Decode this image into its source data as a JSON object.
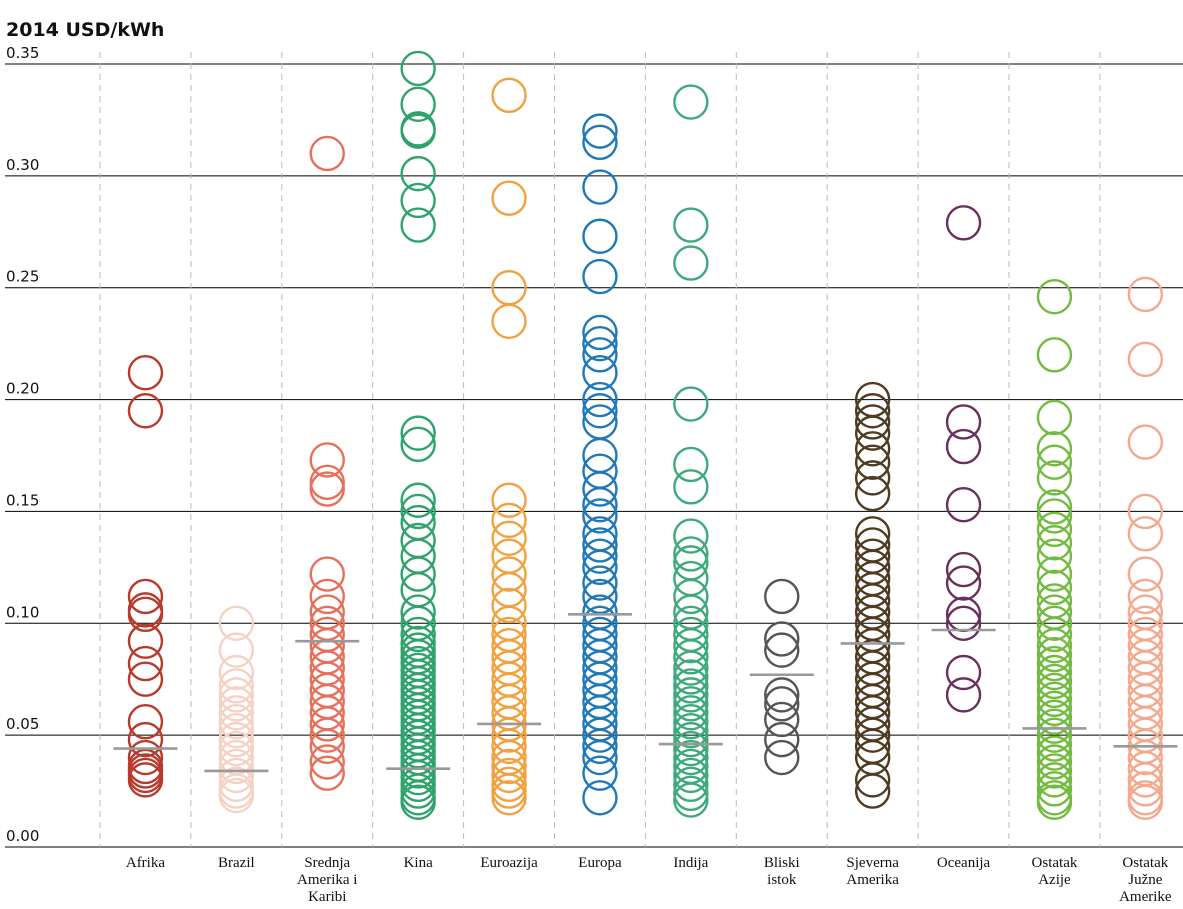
{
  "chart_data": {
    "type": "scatter",
    "title": "",
    "ylabel": "2014 USD/kWh",
    "xlabel": "",
    "ylim": [
      0,
      0.35
    ],
    "yticks": [
      "0.00",
      "0.05",
      "0.10",
      "0.15",
      "0.20",
      "0.25",
      "0.30",
      "0.35"
    ],
    "grid": "horizontal",
    "categories": [
      {
        "label_lines": [
          "Afrika"
        ],
        "color": "#b83a2c",
        "values": [
          0.212,
          0.195,
          0.112,
          0.106,
          0.104,
          0.092,
          0.082,
          0.075,
          0.056,
          0.048,
          0.04,
          0.036,
          0.034,
          0.032,
          0.03
        ],
        "mean": 0.044
      },
      {
        "label_lines": [
          "Brazil"
        ],
        "color": "#f5d2c4",
        "values": [
          0.1,
          0.088,
          0.078,
          0.072,
          0.068,
          0.064,
          0.06,
          0.056,
          0.052,
          0.048,
          0.044,
          0.04,
          0.036,
          0.032,
          0.028,
          0.025,
          0.023
        ],
        "mean": 0.034
      },
      {
        "label_lines": [
          "Srednja",
          "Amerika i",
          "Karibi"
        ],
        "color": "#e8705a",
        "values": [
          0.31,
          0.173,
          0.163,
          0.16,
          0.122,
          0.112,
          0.105,
          0.1,
          0.095,
          0.09,
          0.085,
          0.08,
          0.075,
          0.07,
          0.065,
          0.06,
          0.055,
          0.05,
          0.045,
          0.038,
          0.033
        ],
        "mean": 0.092
      },
      {
        "label_lines": [
          "Kina"
        ],
        "color": "#2fa36b",
        "values": [
          0.348,
          0.332,
          0.321,
          0.32,
          0.301,
          0.289,
          0.278,
          0.185,
          0.18,
          0.155,
          0.15,
          0.145,
          0.137,
          0.13,
          0.122,
          0.115,
          0.105,
          0.1,
          0.095,
          0.091,
          0.088,
          0.085,
          0.082,
          0.079,
          0.076,
          0.073,
          0.07,
          0.067,
          0.064,
          0.061,
          0.058,
          0.055,
          0.052,
          0.049,
          0.046,
          0.043,
          0.04,
          0.037,
          0.034,
          0.031,
          0.028,
          0.025,
          0.022,
          0.02
        ],
        "mean": 0.035
      },
      {
        "label_lines": [
          "Euroazija"
        ],
        "color": "#f3a03e",
        "values": [
          0.336,
          0.29,
          0.25,
          0.235,
          0.155,
          0.146,
          0.138,
          0.13,
          0.122,
          0.115,
          0.108,
          0.1,
          0.095,
          0.09,
          0.085,
          0.08,
          0.075,
          0.07,
          0.065,
          0.06,
          0.055,
          0.05,
          0.045,
          0.04,
          0.036,
          0.032,
          0.028,
          0.025,
          0.022
        ],
        "mean": 0.055
      },
      {
        "label_lines": [
          "Europa"
        ],
        "color": "#1f78b8",
        "values": [
          0.32,
          0.315,
          0.295,
          0.273,
          0.255,
          0.23,
          0.225,
          0.22,
          0.212,
          0.2,
          0.195,
          0.19,
          0.175,
          0.168,
          0.16,
          0.153,
          0.148,
          0.14,
          0.135,
          0.13,
          0.125,
          0.118,
          0.112,
          0.105,
          0.1,
          0.095,
          0.09,
          0.085,
          0.08,
          0.075,
          0.07,
          0.065,
          0.06,
          0.055,
          0.05,
          0.045,
          0.04,
          0.033,
          0.022
        ],
        "mean": 0.104
      },
      {
        "label_lines": [
          "Indija"
        ],
        "color": "#3ea97d",
        "values": [
          0.333,
          0.278,
          0.261,
          0.198,
          0.171,
          0.161,
          0.139,
          0.131,
          0.127,
          0.12,
          0.112,
          0.105,
          0.1,
          0.095,
          0.09,
          0.085,
          0.08,
          0.076,
          0.072,
          0.068,
          0.064,
          0.06,
          0.056,
          0.052,
          0.048,
          0.044,
          0.04,
          0.036,
          0.032,
          0.028,
          0.024,
          0.021
        ],
        "mean": 0.046
      },
      {
        "label_lines": [
          "Bliski",
          "istok"
        ],
        "color": "#555555",
        "values": [
          0.112,
          0.093,
          0.088,
          0.068,
          0.064,
          0.057,
          0.048,
          0.04
        ],
        "mean": 0.077
      },
      {
        "label_lines": [
          "Sjeverna",
          "Amerika"
        ],
        "color": "#4e3b22",
        "values": [
          0.2,
          0.195,
          0.19,
          0.185,
          0.178,
          0.172,
          0.165,
          0.158,
          0.14,
          0.135,
          0.13,
          0.125,
          0.12,
          0.115,
          0.11,
          0.105,
          0.1,
          0.095,
          0.09,
          0.085,
          0.08,
          0.075,
          0.07,
          0.065,
          0.06,
          0.055,
          0.05,
          0.045,
          0.04,
          0.03,
          0.025
        ],
        "mean": 0.091
      },
      {
        "label_lines": [
          "Oceanija"
        ],
        "color": "#6b2f5e",
        "values": [
          0.279,
          0.19,
          0.179,
          0.153,
          0.124,
          0.118,
          0.104,
          0.1,
          0.078,
          0.068
        ],
        "mean": 0.097
      },
      {
        "label_lines": [
          "Ostatak",
          "Azije"
        ],
        "color": "#71bb3f",
        "values": [
          0.246,
          0.22,
          0.192,
          0.178,
          0.172,
          0.165,
          0.152,
          0.148,
          0.142,
          0.136,
          0.13,
          0.122,
          0.116,
          0.11,
          0.105,
          0.1,
          0.095,
          0.09,
          0.086,
          0.082,
          0.078,
          0.074,
          0.07,
          0.066,
          0.062,
          0.058,
          0.054,
          0.05,
          0.046,
          0.042,
          0.038,
          0.034,
          0.03,
          0.026,
          0.022,
          0.02
        ],
        "mean": 0.053
      },
      {
        "label_lines": [
          "Ostatak",
          "Južne",
          "Amerike"
        ],
        "color": "#f4a98f",
        "values": [
          0.247,
          0.218,
          0.181,
          0.15,
          0.14,
          0.122,
          0.112,
          0.105,
          0.1,
          0.095,
          0.09,
          0.085,
          0.08,
          0.075,
          0.07,
          0.065,
          0.06,
          0.055,
          0.05,
          0.045,
          0.04,
          0.035,
          0.03,
          0.026,
          0.022,
          0.02
        ],
        "mean": 0.045
      }
    ]
  }
}
